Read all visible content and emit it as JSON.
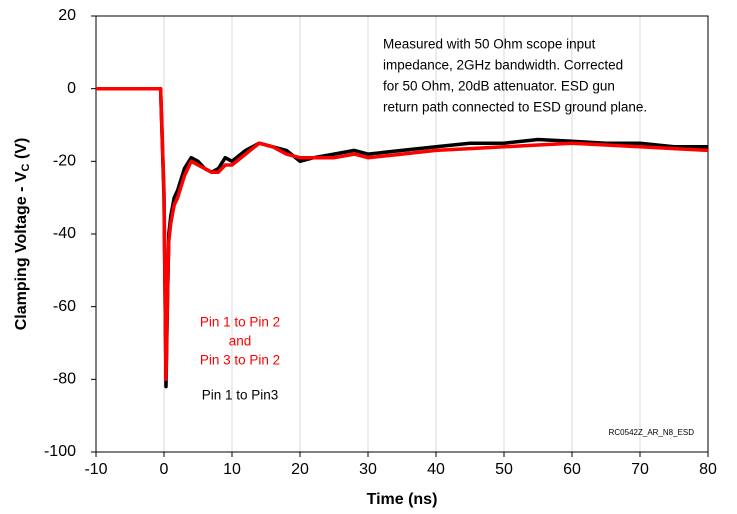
{
  "chart_data": {
    "type": "line",
    "x_label": "Time (ns)",
    "y_label": [
      "Clamping Voltage - V",
      "C",
      " (V)"
    ],
    "annotations": {
      "notes": [
        "Measured with 50 Ohm scope input",
        "impedance, 2GHz bandwidth. Corrected",
        "for 50 Ohm, 20dB attenuator. ESD gun",
        "return path connected to ESD ground plane."
      ],
      "red_label": [
        "Pin 1 to Pin 2",
        "and",
        "Pin 3 to Pin 2"
      ],
      "black_label": "Pin 1 to Pin3",
      "code": "RC0542Z_AR_N8_ESD"
    },
    "x": [
      -10,
      -5,
      -0.5,
      0,
      0.3,
      0.5,
      0.7,
      1,
      1.5,
      2,
      3,
      4,
      5,
      6,
      7,
      8,
      9,
      10,
      12,
      14,
      16,
      18,
      20,
      22,
      25,
      28,
      30,
      35,
      40,
      45,
      50,
      55,
      60,
      65,
      70,
      75,
      80
    ],
    "series": [
      {
        "name": "Pin 1 to Pin3",
        "color": "#000000",
        "values": [
          0,
          0,
          0,
          -30,
          -82,
          -60,
          -40,
          -35,
          -30,
          -28,
          -22,
          -19,
          -20,
          -22,
          -23,
          -22,
          -19,
          -20,
          -17,
          -15,
          -16,
          -17,
          -20,
          -19,
          -18,
          -17,
          -18,
          -17,
          -16,
          -15,
          -15,
          -14,
          -14.5,
          -15,
          -15,
          -16,
          -16
        ]
      },
      {
        "name": "Pin 1 to Pin 2 and Pin 3 to Pin 2",
        "color": "#ff0000",
        "values": [
          0,
          0,
          0,
          -28,
          -80,
          -58,
          -42,
          -37,
          -32,
          -30,
          -24,
          -20,
          -21,
          -22,
          -23,
          -23,
          -21,
          -21,
          -18,
          -15,
          -16,
          -18,
          -19,
          -19,
          -19,
          -18,
          -19,
          -18,
          -17,
          -16.5,
          -16,
          -15.5,
          -15,
          -15.5,
          -16,
          -16.5,
          -17
        ]
      }
    ],
    "xlim": [
      -10,
      80
    ],
    "xticks": [
      -10,
      0,
      10,
      20,
      30,
      40,
      50,
      60,
      70,
      80
    ],
    "ylim": [
      -100,
      20
    ],
    "yticks": [
      -100,
      -80,
      -60,
      -40,
      -20,
      0,
      20
    ],
    "grid": "x"
  }
}
